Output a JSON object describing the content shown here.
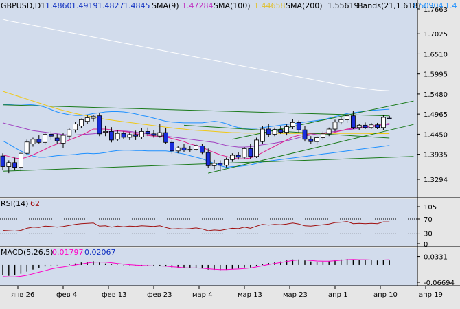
{
  "header": {
    "symbol": "GBPUSD,D1",
    "ohlc": [
      "1.4860",
      "1.4919",
      "1.4827",
      "1.4845"
    ],
    "sma9_label": "SMA(9)",
    "sma9_value": "1.47284",
    "sma100_label": "SMA(100)",
    "sma100_value": "1.44658",
    "sma200_label": "SMA(200)",
    "sma200_value": "1.55619",
    "bands_label": "Bands(21,1.618)",
    "bands_value": "1.50904",
    "bands_value2": "1.4"
  },
  "colors": {
    "plot_bg": "#d2dcec",
    "bull": "#ffffff",
    "bear": "#1a2edc",
    "sma9": "#e0208c",
    "sma100": "#f0c814",
    "sma200": "#ffffff",
    "bands_outer": "#1e90ff",
    "bands_mid": "#a040c0",
    "trend": "#1a7a1a",
    "rsi": "#a01010",
    "macd_signal": "#ff00c8",
    "macd_hist": "#000000"
  },
  "chart_data": {
    "type": "candlestick",
    "price_axis": {
      "ticks": [
        "1.7663",
        "1.7025",
        "1.6510",
        "1.5995",
        "1.5480",
        "1.4965",
        "1.4450",
        "1.3935",
        "1.3294"
      ],
      "range": [
        1.3294,
        1.7663
      ]
    },
    "time_axis": {
      "labels": [
        "янв 26",
        "фев 4",
        "фев 13",
        "фев 23",
        "мар 4",
        "мар 13",
        "мар 23",
        "апр 1",
        "апр 10",
        "апр 19"
      ]
    },
    "candles": [
      {
        "o": 1.389,
        "h": 1.396,
        "l": 1.352,
        "c": 1.362
      },
      {
        "o": 1.362,
        "h": 1.378,
        "l": 1.345,
        "c": 1.372
      },
      {
        "o": 1.372,
        "h": 1.385,
        "l": 1.352,
        "c": 1.36
      },
      {
        "o": 1.36,
        "h": 1.4,
        "l": 1.35,
        "c": 1.396
      },
      {
        "o": 1.396,
        "h": 1.431,
        "l": 1.392,
        "c": 1.425
      },
      {
        "o": 1.42,
        "h": 1.436,
        "l": 1.413,
        "c": 1.432
      },
      {
        "o": 1.432,
        "h": 1.442,
        "l": 1.42,
        "c": 1.424
      },
      {
        "o": 1.424,
        "h": 1.45,
        "l": 1.418,
        "c": 1.445
      },
      {
        "o": 1.445,
        "h": 1.452,
        "l": 1.43,
        "c": 1.44
      },
      {
        "o": 1.435,
        "h": 1.446,
        "l": 1.42,
        "c": 1.428
      },
      {
        "o": 1.422,
        "h": 1.448,
        "l": 1.41,
        "c": 1.442
      },
      {
        "o": 1.44,
        "h": 1.46,
        "l": 1.432,
        "c": 1.456
      },
      {
        "o": 1.456,
        "h": 1.476,
        "l": 1.45,
        "c": 1.471
      },
      {
        "o": 1.466,
        "h": 1.485,
        "l": 1.46,
        "c": 1.482
      },
      {
        "o": 1.478,
        "h": 1.495,
        "l": 1.472,
        "c": 1.487
      },
      {
        "o": 1.486,
        "h": 1.495,
        "l": 1.478,
        "c": 1.491
      },
      {
        "o": 1.492,
        "h": 1.499,
        "l": 1.44,
        "c": 1.446
      },
      {
        "o": 1.45,
        "h": 1.467,
        "l": 1.44,
        "c": 1.452
      },
      {
        "o": 1.452,
        "h": 1.463,
        "l": 1.424,
        "c": 1.43
      },
      {
        "o": 1.432,
        "h": 1.455,
        "l": 1.428,
        "c": 1.447
      },
      {
        "o": 1.447,
        "h": 1.452,
        "l": 1.432,
        "c": 1.437
      },
      {
        "o": 1.437,
        "h": 1.45,
        "l": 1.43,
        "c": 1.444
      },
      {
        "o": 1.444,
        "h": 1.454,
        "l": 1.43,
        "c": 1.44
      },
      {
        "o": 1.438,
        "h": 1.46,
        "l": 1.432,
        "c": 1.452
      },
      {
        "o": 1.452,
        "h": 1.462,
        "l": 1.44,
        "c": 1.446
      },
      {
        "o": 1.446,
        "h": 1.456,
        "l": 1.436,
        "c": 1.442
      },
      {
        "o": 1.44,
        "h": 1.471,
        "l": 1.436,
        "c": 1.449
      },
      {
        "o": 1.449,
        "h": 1.461,
        "l": 1.42,
        "c": 1.424
      },
      {
        "o": 1.424,
        "h": 1.43,
        "l": 1.395,
        "c": 1.402
      },
      {
        "o": 1.402,
        "h": 1.415,
        "l": 1.396,
        "c": 1.41
      },
      {
        "o": 1.41,
        "h": 1.42,
        "l": 1.398,
        "c": 1.404
      },
      {
        "o": 1.404,
        "h": 1.414,
        "l": 1.4,
        "c": 1.406
      },
      {
        "o": 1.406,
        "h": 1.421,
        "l": 1.402,
        "c": 1.416
      },
      {
        "o": 1.415,
        "h": 1.42,
        "l": 1.394,
        "c": 1.398
      },
      {
        "o": 1.398,
        "h": 1.408,
        "l": 1.358,
        "c": 1.364
      },
      {
        "o": 1.364,
        "h": 1.379,
        "l": 1.355,
        "c": 1.37
      },
      {
        "o": 1.37,
        "h": 1.378,
        "l": 1.35,
        "c": 1.365
      },
      {
        "o": 1.365,
        "h": 1.385,
        "l": 1.36,
        "c": 1.38
      },
      {
        "o": 1.38,
        "h": 1.396,
        "l": 1.374,
        "c": 1.391
      },
      {
        "o": 1.391,
        "h": 1.398,
        "l": 1.38,
        "c": 1.386
      },
      {
        "o": 1.386,
        "h": 1.412,
        "l": 1.382,
        "c": 1.408
      },
      {
        "o": 1.408,
        "h": 1.42,
        "l": 1.382,
        "c": 1.388
      },
      {
        "o": 1.388,
        "h": 1.436,
        "l": 1.384,
        "c": 1.43
      },
      {
        "o": 1.426,
        "h": 1.466,
        "l": 1.42,
        "c": 1.458
      },
      {
        "o": 1.458,
        "h": 1.472,
        "l": 1.438,
        "c": 1.445
      },
      {
        "o": 1.445,
        "h": 1.462,
        "l": 1.44,
        "c": 1.457
      },
      {
        "o": 1.457,
        "h": 1.466,
        "l": 1.446,
        "c": 1.45
      },
      {
        "o": 1.45,
        "h": 1.47,
        "l": 1.442,
        "c": 1.464
      },
      {
        "o": 1.464,
        "h": 1.484,
        "l": 1.458,
        "c": 1.475
      },
      {
        "o": 1.475,
        "h": 1.48,
        "l": 1.448,
        "c": 1.456
      },
      {
        "o": 1.456,
        "h": 1.466,
        "l": 1.426,
        "c": 1.432
      },
      {
        "o": 1.432,
        "h": 1.44,
        "l": 1.42,
        "c": 1.426
      },
      {
        "o": 1.426,
        "h": 1.44,
        "l": 1.418,
        "c": 1.436
      },
      {
        "o": 1.436,
        "h": 1.452,
        "l": 1.43,
        "c": 1.446
      },
      {
        "o": 1.446,
        "h": 1.462,
        "l": 1.44,
        "c": 1.458
      },
      {
        "o": 1.458,
        "h": 1.482,
        "l": 1.452,
        "c": 1.476
      },
      {
        "o": 1.476,
        "h": 1.488,
        "l": 1.47,
        "c": 1.482
      },
      {
        "o": 1.482,
        "h": 1.498,
        "l": 1.474,
        "c": 1.492
      },
      {
        "o": 1.492,
        "h": 1.505,
        "l": 1.458,
        "c": 1.462
      },
      {
        "o": 1.462,
        "h": 1.472,
        "l": 1.455,
        "c": 1.468
      },
      {
        "o": 1.468,
        "h": 1.475,
        "l": 1.458,
        "c": 1.462
      },
      {
        "o": 1.462,
        "h": 1.474,
        "l": 1.458,
        "c": 1.469
      },
      {
        "o": 1.469,
        "h": 1.474,
        "l": 1.458,
        "c": 1.462
      },
      {
        "o": 1.462,
        "h": 1.494,
        "l": 1.456,
        "c": 1.488
      },
      {
        "o": 1.486,
        "h": 1.4919,
        "l": 1.4827,
        "c": 1.4845
      }
    ],
    "sma9": [
      1.392,
      1.388,
      1.384,
      1.382,
      1.386,
      1.392,
      1.399,
      1.406,
      1.414,
      1.42,
      1.424,
      1.43,
      1.436,
      1.442,
      1.45,
      1.458,
      1.458,
      1.458,
      1.456,
      1.454,
      1.452,
      1.45,
      1.446,
      1.444,
      1.442,
      1.44,
      1.44,
      1.438,
      1.434,
      1.43,
      1.426,
      1.42,
      1.416,
      1.412,
      1.404,
      1.398,
      1.392,
      1.388,
      1.384,
      1.382,
      1.382,
      1.384,
      1.39,
      1.398,
      1.406,
      1.414,
      1.422,
      1.43,
      1.438,
      1.442,
      1.444,
      1.446,
      1.446,
      1.446,
      1.446,
      1.45,
      1.454,
      1.458,
      1.46,
      1.462,
      1.464,
      1.466,
      1.468,
      1.47,
      1.4728
    ],
    "sma100": [
      1.555,
      1.55,
      1.545,
      1.54,
      1.535,
      1.53,
      1.525,
      1.52,
      1.515,
      1.51,
      1.506,
      1.502,
      1.498,
      1.495,
      1.492,
      1.489,
      1.486,
      1.483,
      1.481,
      1.479,
      1.477,
      1.475,
      1.473,
      1.471,
      1.469,
      1.467,
      1.465,
      1.463,
      1.461,
      1.459,
      1.458,
      1.456,
      1.455,
      1.454,
      1.453,
      1.452,
      1.451,
      1.45,
      1.449,
      1.449,
      1.448,
      1.448,
      1.448,
      1.448,
      1.448,
      1.448,
      1.447,
      1.447,
      1.447,
      1.447,
      1.447,
      1.447,
      1.447,
      1.447,
      1.447,
      1.447,
      1.447,
      1.447,
      1.447,
      1.447,
      1.447,
      1.4466,
      1.4466,
      1.4466,
      1.4466
    ],
    "sma200": [
      1.74,
      1.736,
      1.733,
      1.73,
      1.727,
      1.724,
      1.721,
      1.718,
      1.715,
      1.712,
      1.709,
      1.706,
      1.703,
      1.7,
      1.697,
      1.694,
      1.691,
      1.688,
      1.685,
      1.682,
      1.679,
      1.676,
      1.673,
      1.67,
      1.667,
      1.664,
      1.661,
      1.658,
      1.655,
      1.652,
      1.649,
      1.646,
      1.643,
      1.64,
      1.637,
      1.634,
      1.631,
      1.628,
      1.625,
      1.622,
      1.619,
      1.616,
      1.613,
      1.61,
      1.607,
      1.604,
      1.601,
      1.598,
      1.595,
      1.592,
      1.589,
      1.586,
      1.583,
      1.58,
      1.577,
      1.574,
      1.571,
      1.568,
      1.566,
      1.564,
      1.562,
      1.56,
      1.558,
      1.557,
      1.5562
    ],
    "bands_upper": [
      1.52,
      1.521,
      1.522,
      1.522,
      1.521,
      1.52,
      1.518,
      1.514,
      1.508,
      1.502,
      1.498,
      1.495,
      1.493,
      1.493,
      1.495,
      1.498,
      1.5,
      1.502,
      1.503,
      1.503,
      1.502,
      1.5,
      1.497,
      1.493,
      1.49,
      1.486,
      1.482,
      1.478,
      1.476,
      1.475,
      1.474,
      1.474,
      1.474,
      1.474,
      1.476,
      1.478,
      1.476,
      1.472,
      1.466,
      1.462,
      1.46,
      1.46,
      1.46,
      1.462,
      1.464,
      1.466,
      1.468,
      1.47,
      1.472,
      1.474,
      1.476,
      1.478,
      1.48,
      1.482,
      1.486,
      1.49,
      1.494,
      1.498,
      1.5,
      1.502,
      1.504,
      1.506,
      1.507,
      1.508,
      1.509
    ],
    "bands_middle": [
      1.474,
      1.47,
      1.466,
      1.462,
      1.458,
      1.454,
      1.452,
      1.45,
      1.448,
      1.446,
      1.444,
      1.443,
      1.443,
      1.444,
      1.445,
      1.446,
      1.448,
      1.45,
      1.452,
      1.453,
      1.453,
      1.452,
      1.45,
      1.448,
      1.446,
      1.444,
      1.442,
      1.44,
      1.438,
      1.436,
      1.434,
      1.432,
      1.43,
      1.428,
      1.426,
      1.424,
      1.42,
      1.416,
      1.414,
      1.412,
      1.412,
      1.413,
      1.415,
      1.418,
      1.42,
      1.422,
      1.425,
      1.428,
      1.432,
      1.436,
      1.44,
      1.443,
      1.446,
      1.448,
      1.45,
      1.452,
      1.454,
      1.456,
      1.458,
      1.46,
      1.462,
      1.464,
      1.466,
      1.468,
      1.47
    ],
    "bands_lower": [
      1.428,
      1.42,
      1.41,
      1.402,
      1.395,
      1.389,
      1.386,
      1.386,
      1.388,
      1.39,
      1.391,
      1.392,
      1.393,
      1.395,
      1.396,
      1.395,
      1.396,
      1.398,
      1.401,
      1.403,
      1.404,
      1.404,
      1.403,
      1.403,
      1.402,
      1.402,
      1.402,
      1.402,
      1.4,
      1.397,
      1.394,
      1.39,
      1.386,
      1.382,
      1.376,
      1.37,
      1.364,
      1.36,
      1.362,
      1.362,
      1.364,
      1.366,
      1.37,
      1.374,
      1.376,
      1.378,
      1.38,
      1.382,
      1.384,
      1.386,
      1.388,
      1.39,
      1.392,
      1.394,
      1.396,
      1.398,
      1.4,
      1.402,
      1.404,
      1.406,
      1.408,
      1.41,
      1.412,
      1.414,
      1.416
    ],
    "trendlines": [
      {
        "from": [
          0,
          1.52
        ],
        "to": [
          64,
          1.492
        ]
      },
      {
        "from": [
          0,
          1.35
        ],
        "to": [
          68,
          1.388
        ]
      },
      {
        "from": [
          34,
          1.345
        ],
        "to": [
          68,
          1.47
        ]
      },
      {
        "from": [
          38,
          1.432
        ],
        "to": [
          68,
          1.53
        ]
      },
      {
        "from": [
          30,
          1.468
        ],
        "to": [
          64,
          1.435
        ]
      }
    ],
    "rsi": {
      "label": "RSI(14)",
      "value": "62",
      "ticks": [
        "105",
        "70",
        "30",
        "0"
      ],
      "levels": [
        70,
        30
      ],
      "range": [
        0,
        105
      ],
      "values": [
        38,
        37,
        36,
        38,
        44,
        47,
        46,
        50,
        49,
        47,
        49,
        52,
        55,
        57,
        58,
        59,
        50,
        51,
        47,
        50,
        48,
        50,
        49,
        51,
        50,
        49,
        51,
        46,
        42,
        43,
        42,
        43,
        45,
        42,
        37,
        39,
        38,
        41,
        44,
        43,
        47,
        44,
        50,
        55,
        53,
        55,
        54,
        56,
        59,
        56,
        51,
        50,
        52,
        54,
        56,
        60,
        61,
        63,
        57,
        58,
        57,
        58,
        57,
        62,
        62
      ]
    },
    "macd": {
      "label": "MACD(5,26,5)",
      "value1": "0.01797",
      "value2": "0.02067",
      "ticks": [
        "0.0331",
        "-0.06694"
      ],
      "range": [
        -0.075,
        0.04
      ],
      "hist": [
        -0.04,
        -0.042,
        -0.04,
        -0.034,
        -0.026,
        -0.018,
        -0.012,
        -0.006,
        -0.002,
        -0.001,
        0.0,
        0.003,
        0.006,
        0.01,
        0.013,
        0.015,
        0.01,
        0.006,
        0.002,
        0.001,
        -0.001,
        -0.001,
        -0.002,
        -0.002,
        -0.003,
        -0.004,
        -0.004,
        -0.006,
        -0.01,
        -0.012,
        -0.013,
        -0.013,
        -0.012,
        -0.014,
        -0.018,
        -0.019,
        -0.02,
        -0.019,
        -0.016,
        -0.014,
        -0.01,
        -0.01,
        -0.004,
        0.004,
        0.008,
        0.012,
        0.014,
        0.018,
        0.022,
        0.022,
        0.018,
        0.014,
        0.013,
        0.014,
        0.016,
        0.02,
        0.022,
        0.024,
        0.021,
        0.02,
        0.019,
        0.019,
        0.018,
        0.02,
        0.018
      ],
      "signal": [
        -0.045,
        -0.046,
        -0.046,
        -0.044,
        -0.04,
        -0.034,
        -0.028,
        -0.022,
        -0.016,
        -0.011,
        -0.008,
        -0.004,
        0.0,
        0.004,
        0.008,
        0.011,
        0.012,
        0.011,
        0.009,
        0.006,
        0.003,
        0.001,
        -0.001,
        -0.002,
        -0.003,
        -0.004,
        -0.004,
        -0.005,
        -0.007,
        -0.009,
        -0.011,
        -0.012,
        -0.012,
        -0.013,
        -0.015,
        -0.017,
        -0.018,
        -0.018,
        -0.017,
        -0.016,
        -0.014,
        -0.012,
        -0.008,
        -0.003,
        0.002,
        0.006,
        0.01,
        0.014,
        0.018,
        0.02,
        0.02,
        0.018,
        0.016,
        0.015,
        0.015,
        0.017,
        0.019,
        0.021,
        0.022,
        0.021,
        0.021,
        0.02,
        0.02,
        0.02,
        0.021
      ]
    }
  }
}
